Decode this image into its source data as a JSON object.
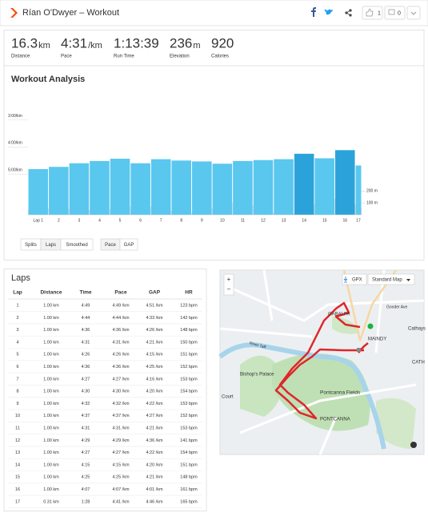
{
  "header": {
    "title": "Rían O'Dwyer – Workout",
    "likes": "1",
    "comments": "0"
  },
  "stats": [
    {
      "value": "16.3",
      "unit": "km",
      "label": "Distance"
    },
    {
      "value": "4:31",
      "unit": "/km",
      "label": "Pace"
    },
    {
      "value": "1:13:39",
      "label": "Run Time"
    },
    {
      "value": "236",
      "unit": "m",
      "label": "Elevation"
    },
    {
      "value": "920",
      "label": "Calories"
    }
  ],
  "chart_data": {
    "type": "bar",
    "title": "Workout Analysis",
    "categories": [
      "Lap 1",
      "2",
      "3",
      "4",
      "5",
      "6",
      "7",
      "8",
      "9",
      "10",
      "11",
      "12",
      "13",
      "14",
      "15",
      "16",
      "17"
    ],
    "values": [
      289,
      284,
      276,
      271,
      266,
      276,
      267,
      270,
      272,
      277,
      271,
      269,
      267,
      255,
      265,
      247,
      281
    ],
    "colors": [
      "#5ac7ef",
      "#5ac7ef",
      "#5ac7ef",
      "#5ac7ef",
      "#5ac7ef",
      "#5ac7ef",
      "#5ac7ef",
      "#5ac7ef",
      "#5ac7ef",
      "#5ac7ef",
      "#5ac7ef",
      "#5ac7ef",
      "#5ac7ef",
      "#2ba3da",
      "#5ac7ef",
      "#2ba3da",
      "#5ac7ef"
    ],
    "ylim": [
      390,
      110
    ],
    "yticks": [
      {
        "value": 180,
        "label": "3:00/km"
      },
      {
        "value": 240,
        "label": "4:00/km"
      },
      {
        "value": 300,
        "label": "5:00/km"
      }
    ],
    "y2lim": [
      0,
      1067
    ],
    "y2ticks": [
      {
        "value": 100,
        "label": "100 m"
      },
      {
        "value": 200,
        "label": "200 m"
      }
    ],
    "grid": true
  },
  "controls": {
    "splits": [
      "Splits",
      "Laps",
      "Smoothed"
    ],
    "metrics": [
      "Pace",
      "GAP"
    ]
  },
  "laps": {
    "title": "Laps",
    "columns": [
      "Lap",
      "Distance",
      "Time",
      "Pace",
      "GAP",
      "HR"
    ],
    "rows": [
      [
        "1",
        "1.00 km",
        "4:49",
        "4:49 /km",
        "4:51 /km",
        "123 bpm"
      ],
      [
        "2",
        "1.00 km",
        "4:44",
        "4:44 /km",
        "4:33 /km",
        "142 bpm"
      ],
      [
        "3",
        "1.00 km",
        "4:36",
        "4:36 /km",
        "4:26 /km",
        "148 bpm"
      ],
      [
        "4",
        "1.00 km",
        "4:31",
        "4:31 /km",
        "4:21 /km",
        "150 bpm"
      ],
      [
        "5",
        "1.00 km",
        "4:26",
        "4:26 /km",
        "4:15 /km",
        "151 bpm"
      ],
      [
        "6",
        "1.00 km",
        "4:36",
        "4:36 /km",
        "4:25 /km",
        "152 bpm"
      ],
      [
        "7",
        "1.00 km",
        "4:27",
        "4:27 /km",
        "4:16 /km",
        "153 bpm"
      ],
      [
        "8",
        "1.00 km",
        "4:30",
        "4:30 /km",
        "4:20 /km",
        "154 bpm"
      ],
      [
        "9",
        "1.00 km",
        "4:32",
        "4:32 /km",
        "4:22 /km",
        "153 bpm"
      ],
      [
        "10",
        "1.00 km",
        "4:37",
        "4:37 /km",
        "4:27 /km",
        "152 bpm"
      ],
      [
        "11",
        "1.00 km",
        "4:31",
        "4:31 /km",
        "4:21 /km",
        "153 bpm"
      ],
      [
        "12",
        "1.00 km",
        "4:29",
        "4:29 /km",
        "4:36 /km",
        "141 bpm"
      ],
      [
        "13",
        "1.00 km",
        "4:27",
        "4:27 /km",
        "4:22 /km",
        "154 bpm"
      ],
      [
        "14",
        "1.00 km",
        "4:15",
        "4:15 /km",
        "4:20 /km",
        "151 bpm"
      ],
      [
        "15",
        "1.00 km",
        "4:25",
        "4:25 /km",
        "4:21 /km",
        "148 bpm"
      ],
      [
        "16",
        "1.00 km",
        "4:07",
        "4:07 /km",
        "4:01 /km",
        "161 bpm"
      ],
      [
        "17",
        "0.31 km",
        "1:28",
        "4:41 /km",
        "4:46 /km",
        "165 bpm"
      ]
    ]
  },
  "map": {
    "zoom": [
      "+",
      "−"
    ],
    "buttons": [
      "GPX",
      "Standard Map"
    ],
    "labels": [
      "GABALFA",
      "MAINDY",
      "Bishop's Palace",
      "Pontcanna Fields",
      "PONTCANNA",
      "Cathays",
      "CATH",
      "Court",
      "River Taff",
      "Gooder Ave"
    ]
  }
}
